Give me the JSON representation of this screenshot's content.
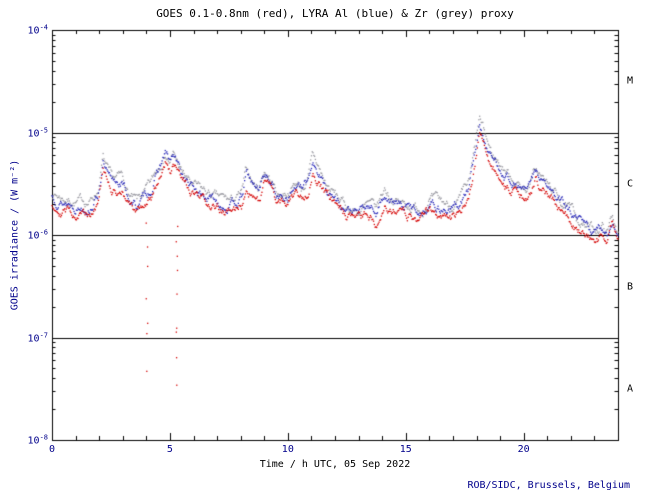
{
  "chart_data": {
    "type": "line",
    "title": "GOES 0.1-0.8nm (red), LYRA Al (blue) & Zr (grey) proxy",
    "xlabel": "Time / h UTC, 05 Sep 2022",
    "ylabel": "GOES irradiance / (W m⁻²)",
    "credit": "ROB/SIDC, Brussels, Belgium",
    "x_range": [
      0,
      24
    ],
    "y_exponent_range": [
      -8,
      -4
    ],
    "x_major_tick_step": 5,
    "x_minor_tick_step": 1,
    "x_tick_values": [
      0,
      5,
      10,
      15,
      20
    ],
    "x_tick_labels": [
      "0",
      "5",
      "10",
      "15",
      "20"
    ],
    "y_tick_exponents": [
      -4,
      -5,
      -6,
      -7,
      -8
    ],
    "reference_lines": [
      1e-05,
      1e-06,
      1e-07
    ],
    "flare_class_labels": [
      "M",
      "C",
      "B",
      "A"
    ],
    "grid": false,
    "axis_color": "#000000",
    "tick_label_color": "#00008B",
    "cadence_minutes": 2,
    "series": [
      {
        "name": "Zr proxy",
        "color": "#9a9aa2",
        "factor": 1.07,
        "seed": 7
      },
      {
        "name": "LYRA Al",
        "color": "#2929b8",
        "factor": 1.0,
        "seed": 13
      },
      {
        "name": "GOES 0.1-0.8nm",
        "color": "#d40000",
        "factor": 0.84,
        "seed": 29
      }
    ],
    "base_keypoints": [
      [
        0,
        2.4e-06
      ],
      [
        0.4,
        2.2e-06
      ],
      [
        1.0,
        2e-06
      ],
      [
        1.6,
        2e-06
      ],
      [
        1.95,
        2.6e-06
      ],
      [
        2.16,
        5.3e-06
      ],
      [
        2.4,
        3.6e-06
      ],
      [
        2.55,
        3e-06
      ],
      [
        2.95,
        3.3e-06
      ],
      [
        3.3,
        2.2e-06
      ],
      [
        3.6,
        1.9e-06
      ],
      [
        3.9,
        2.3e-06
      ],
      [
        4.2,
        2.8e-06
      ],
      [
        4.8,
        6.2e-06
      ],
      [
        5.0,
        5e-06
      ],
      [
        5.15,
        5.8e-06
      ],
      [
        5.5,
        3.8e-06
      ],
      [
        5.9,
        2.9e-06
      ],
      [
        6.3,
        2.5e-06
      ],
      [
        7.0,
        2.1e-06
      ],
      [
        7.6,
        1.95e-06
      ],
      [
        8.05,
        2.3e-06
      ],
      [
        8.25,
        3.9e-06
      ],
      [
        8.55,
        2.9e-06
      ],
      [
        8.75,
        2.7e-06
      ],
      [
        9.0,
        4.1e-06
      ],
      [
        9.3,
        3.2e-06
      ],
      [
        9.6,
        2.3e-06
      ],
      [
        10.0,
        2.5e-06
      ],
      [
        10.35,
        3.1e-06
      ],
      [
        10.6,
        2.7e-06
      ],
      [
        10.85,
        3.3e-06
      ],
      [
        11.05,
        5.4e-06
      ],
      [
        11.3,
        4.2e-06
      ],
      [
        11.6,
        2.9e-06
      ],
      [
        12.0,
        2.3e-06
      ],
      [
        12.5,
        1.75e-06
      ],
      [
        13.0,
        1.6e-06
      ],
      [
        13.4,
        1.8e-06
      ],
      [
        13.75,
        1.6e-06
      ],
      [
        14.1,
        2.6e-06
      ],
      [
        14.4,
        2.2e-06
      ],
      [
        14.8,
        1.9e-06
      ],
      [
        15.2,
        1.8e-06
      ],
      [
        15.7,
        1.7e-06
      ],
      [
        16.0,
        2.2e-06
      ],
      [
        16.4,
        1.9e-06
      ],
      [
        16.9,
        1.8e-06
      ],
      [
        17.3,
        2e-06
      ],
      [
        17.7,
        2.9e-06
      ],
      [
        17.95,
        6.5e-06
      ],
      [
        18.12,
        1.2e-05
      ],
      [
        18.35,
        8.5e-06
      ],
      [
        18.66,
        5.5e-06
      ],
      [
        19.0,
        4.6e-06
      ],
      [
        19.3,
        3.9e-06
      ],
      [
        19.7,
        3.1e-06
      ],
      [
        20.05,
        2.7e-06
      ],
      [
        20.25,
        2.9e-06
      ],
      [
        20.5,
        4.1e-06
      ],
      [
        20.8,
        3.3e-06
      ],
      [
        21.1,
        2.7e-06
      ],
      [
        21.5,
        2.1e-06
      ],
      [
        21.9,
        1.7e-06
      ],
      [
        22.2,
        1.4e-06
      ],
      [
        22.6,
        1.15e-06
      ],
      [
        23.0,
        1.05e-06
      ],
      [
        23.35,
        1.15e-06
      ],
      [
        23.55,
        1e-06
      ],
      [
        23.75,
        1.45e-06
      ],
      [
        24,
        1.05e-06
      ]
    ],
    "dropouts": [
      {
        "t": 4.02,
        "min": 5.5e-08,
        "points": 7
      },
      {
        "t": 5.3,
        "min": 3.5e-08,
        "points": 9
      }
    ]
  }
}
